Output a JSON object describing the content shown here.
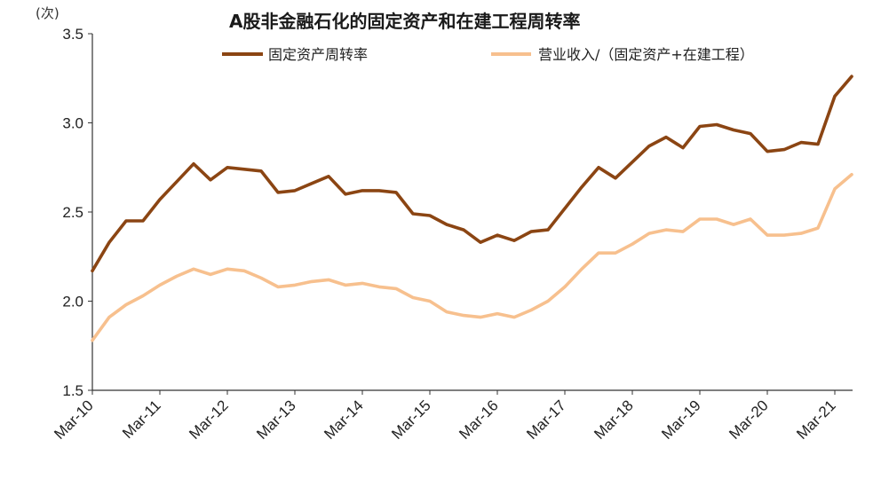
{
  "chart_data": {
    "type": "line",
    "title": "A股非金融石化的固定资产和在建工程周转率",
    "unit_label": "(次)",
    "ylim": [
      1.5,
      3.5
    ],
    "y_ticks": [
      "1.5",
      "2.0",
      "2.5",
      "3.0",
      "3.5"
    ],
    "x_ticks": [
      "Mar-10",
      "Mar-11",
      "Mar-12",
      "Mar-13",
      "Mar-14",
      "Mar-15",
      "Mar-16",
      "Mar-17",
      "Mar-18",
      "Mar-19",
      "Mar-20",
      "Mar-21"
    ],
    "x": [
      "Mar-10",
      "Jun-10",
      "Sep-10",
      "Dec-10",
      "Mar-11",
      "Jun-11",
      "Sep-11",
      "Dec-11",
      "Mar-12",
      "Jun-12",
      "Sep-12",
      "Dec-12",
      "Mar-13",
      "Jun-13",
      "Sep-13",
      "Dec-13",
      "Mar-14",
      "Jun-14",
      "Sep-14",
      "Dec-14",
      "Mar-15",
      "Jun-15",
      "Sep-15",
      "Dec-15",
      "Mar-16",
      "Jun-16",
      "Sep-16",
      "Dec-16",
      "Mar-17",
      "Jun-17",
      "Sep-17",
      "Dec-17",
      "Mar-18",
      "Jun-18",
      "Sep-18",
      "Dec-18",
      "Mar-19",
      "Jun-19",
      "Sep-19",
      "Dec-19",
      "Mar-20",
      "Jun-20",
      "Sep-20",
      "Dec-20",
      "Mar-21",
      "Jun-21"
    ],
    "series": [
      {
        "name": "固定资产周转率",
        "color": "#8B4513",
        "values": [
          2.17,
          2.33,
          2.45,
          2.45,
          2.57,
          2.67,
          2.77,
          2.68,
          2.75,
          2.74,
          2.73,
          2.61,
          2.62,
          2.66,
          2.7,
          2.6,
          2.62,
          2.62,
          2.61,
          2.49,
          2.48,
          2.43,
          2.4,
          2.33,
          2.37,
          2.34,
          2.39,
          2.4,
          2.52,
          2.64,
          2.75,
          2.69,
          2.78,
          2.87,
          2.92,
          2.86,
          2.98,
          2.99,
          2.96,
          2.94,
          2.84,
          2.85,
          2.89,
          2.88,
          3.15,
          3.26
        ]
      },
      {
        "name": "营业收入/（固定资产+在建工程）",
        "color": "#F7C08E",
        "values": [
          1.78,
          1.91,
          1.98,
          2.03,
          2.09,
          2.14,
          2.18,
          2.15,
          2.18,
          2.17,
          2.13,
          2.08,
          2.09,
          2.11,
          2.12,
          2.09,
          2.1,
          2.08,
          2.07,
          2.02,
          2.0,
          1.94,
          1.92,
          1.91,
          1.93,
          1.91,
          1.95,
          2.0,
          2.08,
          2.18,
          2.27,
          2.27,
          2.32,
          2.38,
          2.4,
          2.39,
          2.46,
          2.46,
          2.43,
          2.46,
          2.37,
          2.37,
          2.38,
          2.41,
          2.63,
          2.71
        ]
      }
    ],
    "grid": false,
    "legend_position": "top-center"
  }
}
